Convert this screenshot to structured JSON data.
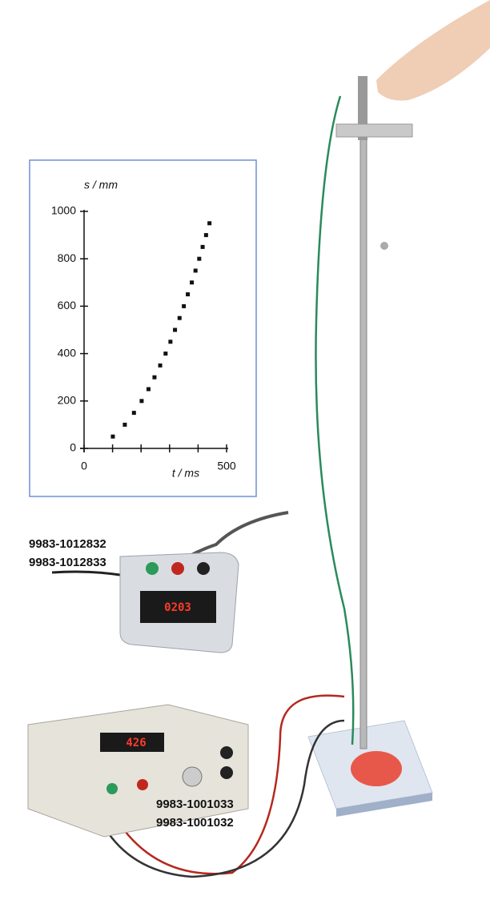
{
  "chart_data": {
    "type": "scatter",
    "x_label": "t / ms",
    "y_label": "s / mm",
    "x": [
      101,
      143,
      175,
      202,
      226,
      247,
      267,
      286,
      303,
      319,
      335,
      350,
      364,
      378,
      391,
      404,
      416,
      428,
      440
    ],
    "values": [
      50,
      100,
      150,
      200,
      250,
      300,
      350,
      400,
      450,
      500,
      550,
      600,
      650,
      700,
      750,
      800,
      850,
      900,
      950
    ],
    "color": "#111111",
    "xlim": [
      0,
      500
    ],
    "xticks": [
      0,
      500
    ],
    "x_minor_ticks": [
      100,
      200,
      300,
      400
    ],
    "ylim": [
      0,
      1000
    ],
    "yticks": [
      0,
      200,
      400,
      600,
      800,
      1000
    ]
  },
  "timer": {
    "numbers": [
      "9983-1012832",
      "9983-1012833"
    ],
    "display": "0203"
  },
  "power_supply": {
    "numbers": [
      "9983-1001033",
      "9983-1001032"
    ],
    "display": "426"
  }
}
